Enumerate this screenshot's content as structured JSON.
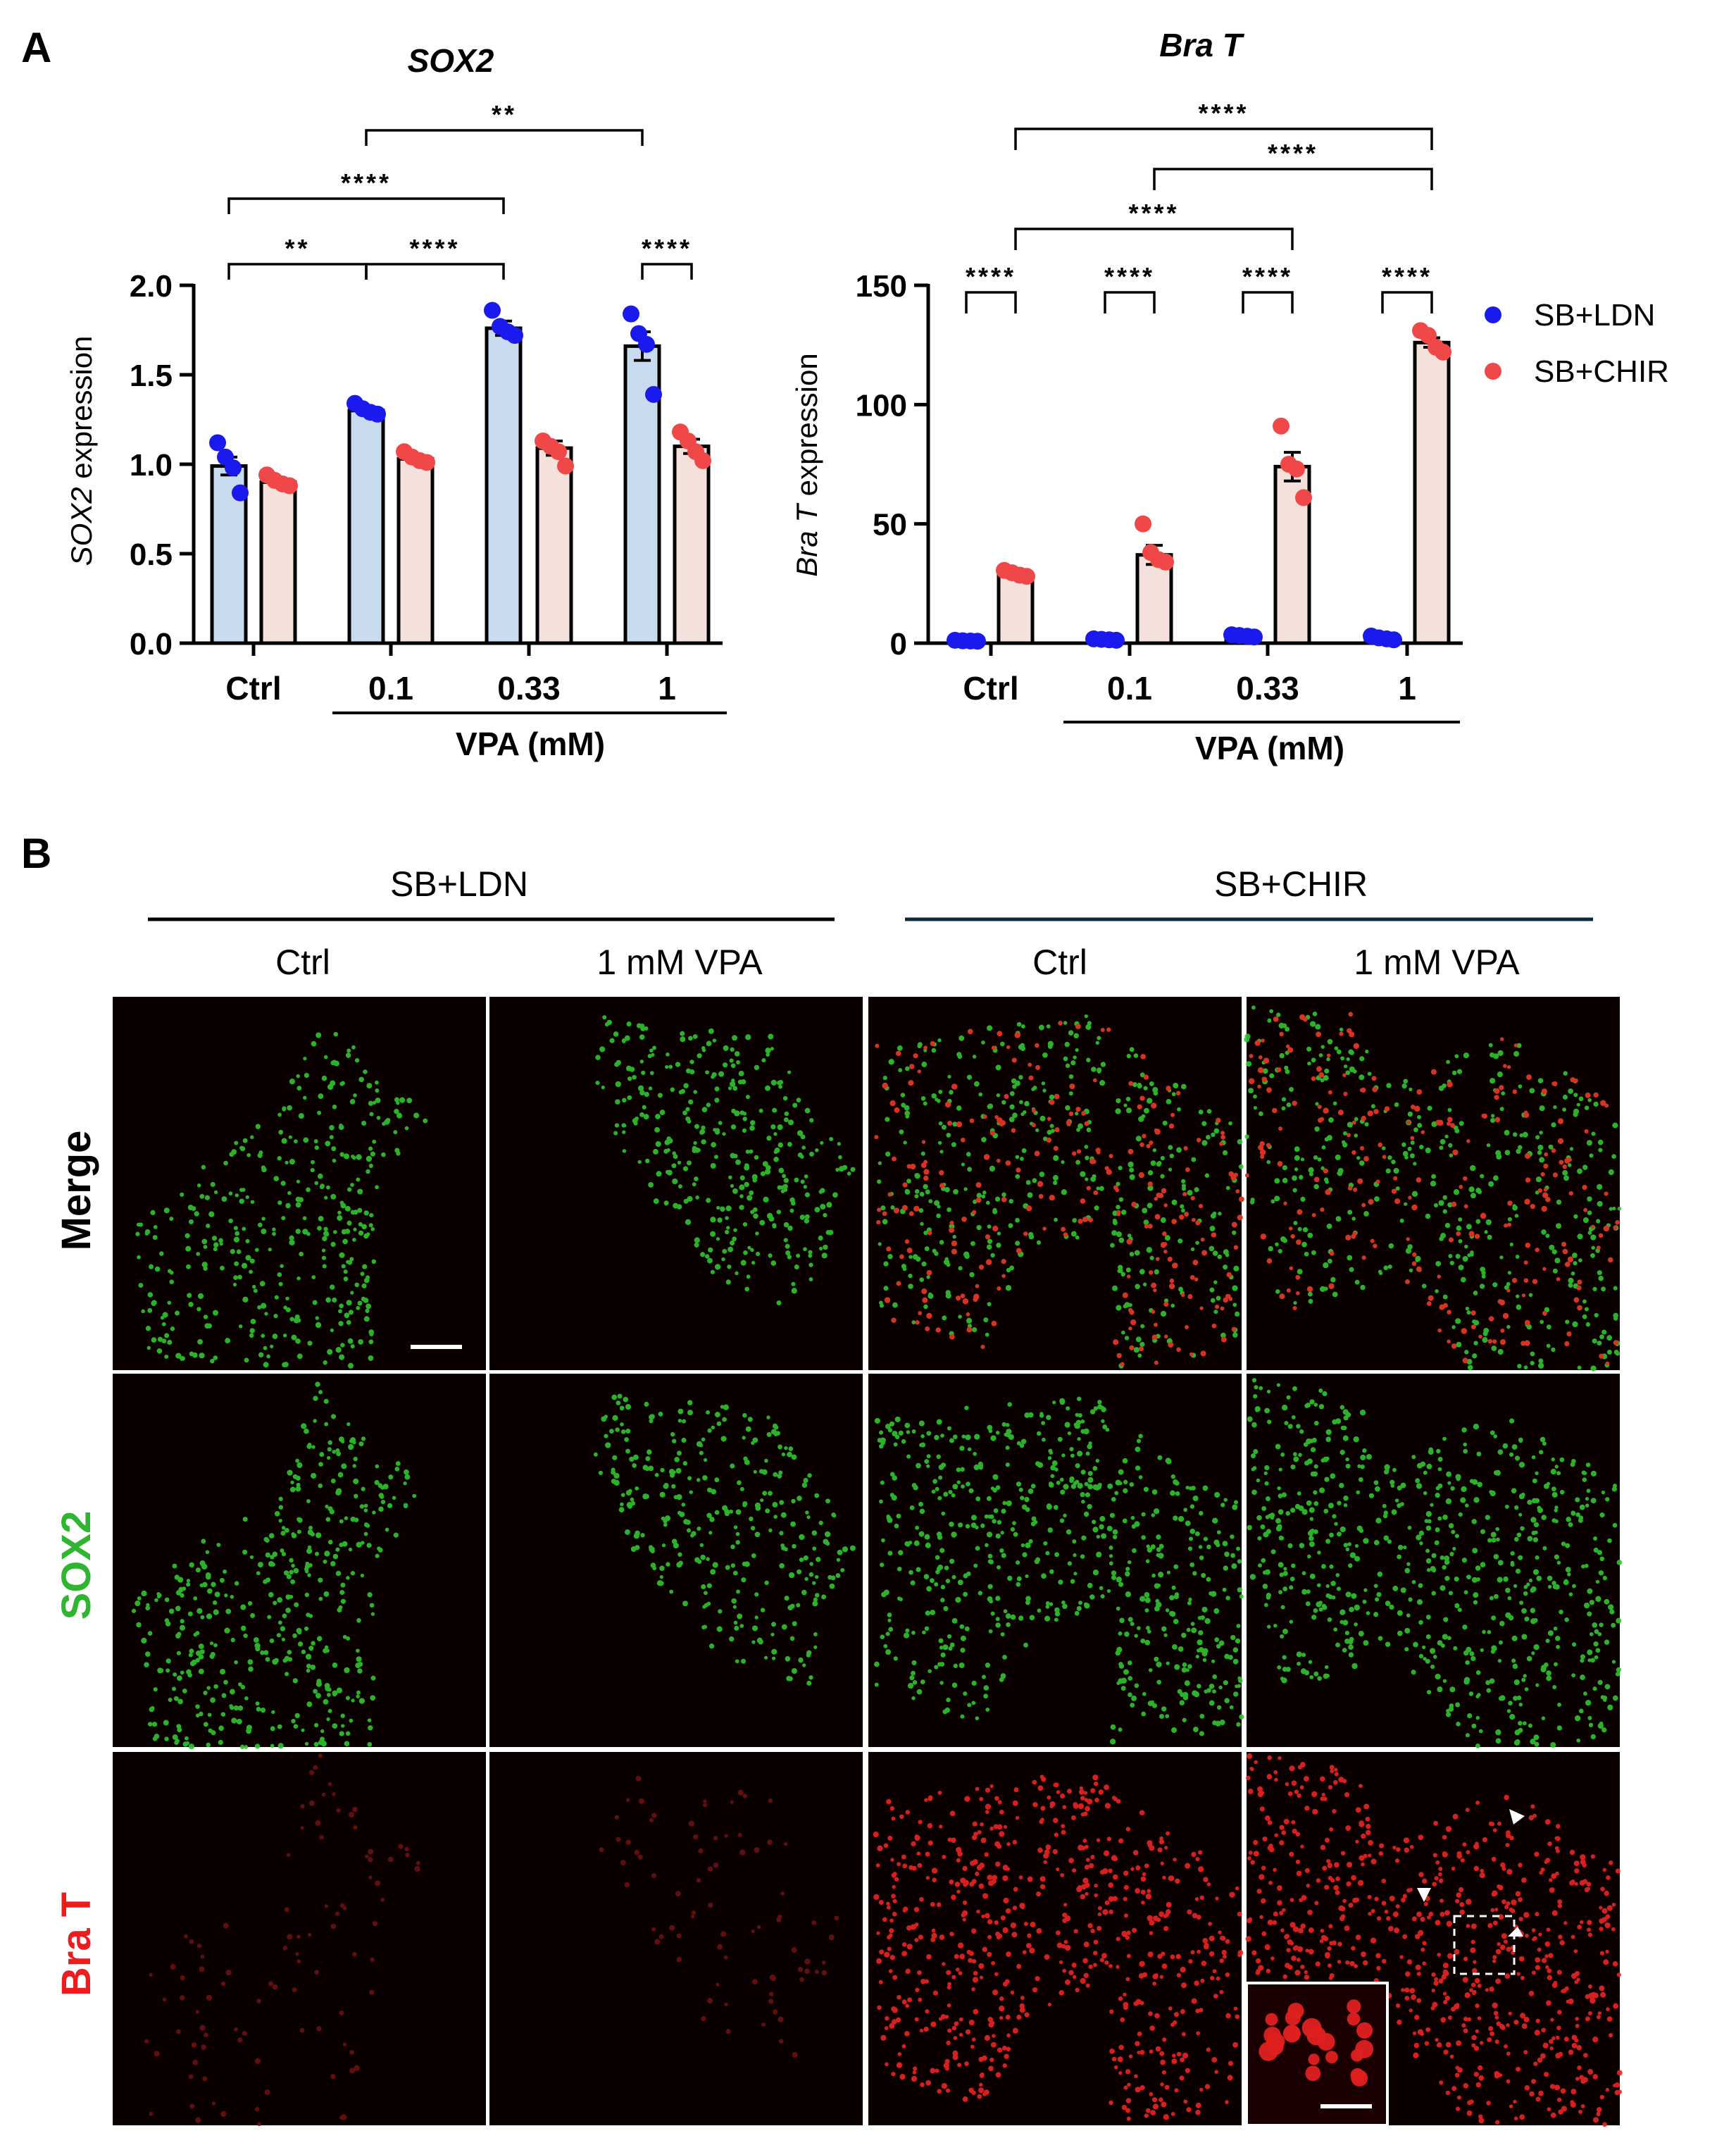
{
  "panels": {
    "a": "A",
    "b": "B"
  },
  "chart_data": [
    {
      "type": "bar",
      "title": "SOX2",
      "ylabel_italic": "SOX2",
      "ylabel_rest": " expression",
      "xlabel": "VPA (mM)",
      "categories": [
        "Ctrl",
        "0.1",
        "0.33",
        "1"
      ],
      "ylim": [
        0,
        2.0
      ],
      "yticks": [
        "0.0",
        "0.5",
        "1.0",
        "1.5",
        "2.0"
      ],
      "ytick_values": [
        0,
        0.5,
        1.0,
        1.5,
        2.0
      ],
      "series": [
        {
          "name": "SB+LDN",
          "values": [
            0.99,
            1.3,
            1.76,
            1.66
          ],
          "sem": [
            0.05,
            0.02,
            0.04,
            0.08
          ],
          "points": [
            [
              1.12,
              1.04,
              0.98,
              0.84
            ],
            [
              1.34,
              1.31,
              1.29,
              1.28
            ],
            [
              1.86,
              1.77,
              1.74,
              1.72
            ],
            [
              1.84,
              1.73,
              1.67,
              1.39
            ]
          ]
        },
        {
          "name": "SB+CHIR",
          "values": [
            0.9,
            1.03,
            1.09,
            1.1
          ],
          "sem": [
            0.02,
            0.02,
            0.04,
            0.04
          ],
          "points": [
            [
              0.94,
              0.91,
              0.89,
              0.88
            ],
            [
              1.07,
              1.04,
              1.02,
              1.01
            ],
            [
              1.13,
              1.1,
              1.07,
              0.99
            ],
            [
              1.18,
              1.13,
              1.07,
              1.02
            ]
          ]
        }
      ],
      "significance": [
        {
          "a": [
            0,
            0
          ],
          "b": [
            1,
            0
          ],
          "label": "**"
        },
        {
          "a": [
            1,
            0
          ],
          "b": [
            2,
            0
          ],
          "label": "****"
        },
        {
          "a": [
            3,
            0
          ],
          "b": [
            3,
            1
          ],
          "label": "****"
        },
        {
          "a": [
            0,
            0
          ],
          "b": [
            2,
            0
          ],
          "label": "****"
        },
        {
          "a": [
            1,
            0
          ],
          "b": [
            3,
            0
          ],
          "label": "**"
        }
      ]
    },
    {
      "type": "bar",
      "title": "Bra T",
      "ylabel_italic": "Bra T",
      "ylabel_rest": " expression",
      "xlabel": "VPA (mM)",
      "categories": [
        "Ctrl",
        "0.1",
        "0.33",
        "1"
      ],
      "ylim": [
        0,
        150
      ],
      "yticks": [
        "0",
        "50",
        "100",
        "150"
      ],
      "ytick_values": [
        0,
        50,
        100,
        150
      ],
      "series": [
        {
          "name": "SB+LDN",
          "values": [
            1,
            1.5,
            3,
            2
          ],
          "sem": [
            0.3,
            0.4,
            0.6,
            0.5
          ],
          "points": [
            [
              1.2,
              1.0,
              0.9,
              0.8
            ],
            [
              1.8,
              1.6,
              1.4,
              1.2
            ],
            [
              3.5,
              3.2,
              2.9,
              2.6
            ],
            [
              3.0,
              2.2,
              1.8,
              1.4
            ]
          ]
        },
        {
          "name": "SB+CHIR",
          "values": [
            29,
            37,
            74,
            126
          ],
          "sem": [
            1.2,
            4,
            6,
            2
          ],
          "points": [
            [
              30.5,
              29.5,
              28.5,
              28.0
            ],
            [
              50,
              38,
              35,
              34
            ],
            [
              91,
              75,
              73,
              61
            ],
            [
              131,
              129,
              124,
              122
            ]
          ]
        }
      ],
      "significance": [
        {
          "a": [
            0,
            0
          ],
          "b": [
            0,
            1
          ],
          "label": "****"
        },
        {
          "a": [
            1,
            0
          ],
          "b": [
            1,
            1
          ],
          "label": "****"
        },
        {
          "a": [
            2,
            0
          ],
          "b": [
            2,
            1
          ],
          "label": "****"
        },
        {
          "a": [
            3,
            0
          ],
          "b": [
            3,
            1
          ],
          "label": "****"
        },
        {
          "a": [
            0,
            1
          ],
          "b": [
            2,
            1
          ],
          "label": "****"
        },
        {
          "a": [
            1,
            1
          ],
          "b": [
            3,
            1
          ],
          "label": "****"
        },
        {
          "a": [
            0,
            1
          ],
          "b": [
            3,
            1
          ],
          "label": "****"
        }
      ]
    }
  ],
  "legend": [
    {
      "label": "SB+LDN",
      "color": "#1a1aee"
    },
    {
      "label": "SB+CHIR",
      "color": "#f04848"
    }
  ],
  "colors": {
    "ldn_bar": "#c9dcef",
    "chir_bar": "#f4e1dc",
    "ldn_dot": "#1a1aee",
    "chir_dot": "#f04848",
    "green": "#2fc42f",
    "red": "#ee2222"
  },
  "micro": {
    "groups": [
      {
        "label": "SB+LDN",
        "line_color": "#000000"
      },
      {
        "label": "SB+CHIR",
        "line_color": "#0d2a3a"
      }
    ],
    "columns": [
      "Ctrl",
      "1 mM VPA",
      "Ctrl",
      "1 mM VPA"
    ],
    "rows": [
      {
        "label": "Merge",
        "color": "#000000"
      },
      {
        "label": "SOX2",
        "color": "#2fb52f"
      },
      {
        "label": "Bra T",
        "color": "#ee1c1c"
      }
    ]
  }
}
